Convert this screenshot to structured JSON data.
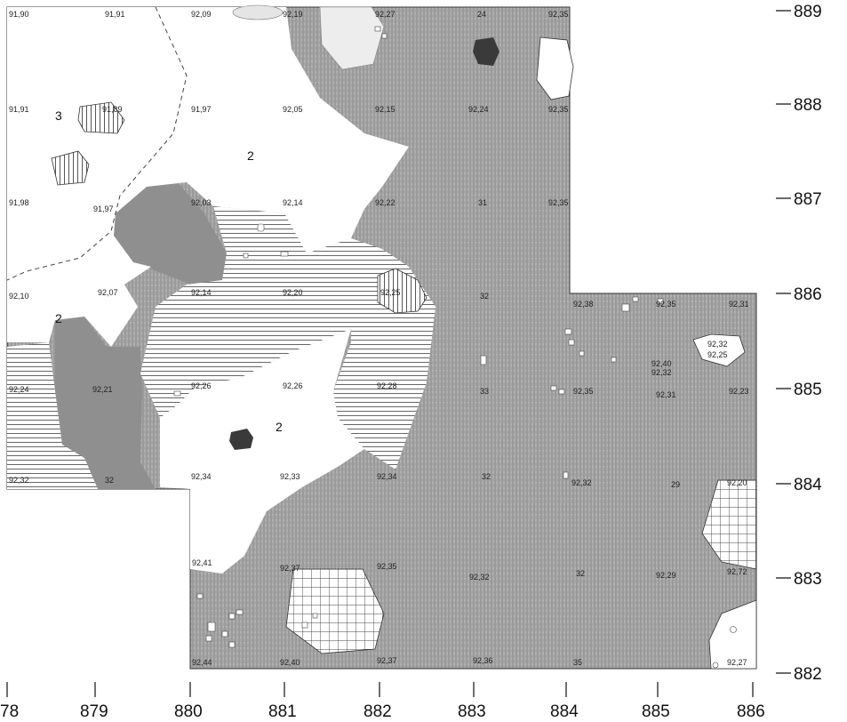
{
  "colors": {
    "stipple_fill": "#a8a8a8",
    "dark_fill": "#8c8c8c",
    "black_fill": "#3a3a3a",
    "light_fill": "#e6e6e6",
    "hatch_stroke": "#444444",
    "dashed_boundary": "#444444"
  },
  "axis": {
    "y_ticks": [
      "889",
      "888",
      "887",
      "886",
      "885",
      "884",
      "883",
      "882"
    ],
    "x_ticks": [
      "78",
      "879",
      "880",
      "881",
      "882",
      "883",
      "884",
      "885",
      "886"
    ]
  },
  "zone_labels": [
    "3",
    "2",
    "2",
    "2"
  ],
  "elevations": [
    "91,90",
    "91,91",
    "92,09",
    "92,19",
    "92,27",
    "24",
    "92,35",
    "91,91",
    "91,89",
    "91,97",
    "92,05",
    "92,15",
    "92,24",
    "92,35",
    "91,98",
    "91,97",
    "92,03",
    "92,14",
    "92,22",
    "31",
    "92,35",
    "92,10",
    "92,07",
    "92,14",
    "92,20",
    "92,25",
    "32",
    "92,38",
    "92,35",
    "92,31",
    "92,32",
    "92,25",
    "92,40",
    "92,32",
    "92,24",
    "92,21",
    "92,26",
    "92,26",
    "92,28",
    "33",
    "92,35",
    "92,31",
    "92,23",
    "92,32",
    "32",
    "92,34",
    "92,33",
    "92,34",
    "32",
    "92,32",
    "29",
    "92,20",
    "92,41",
    "92,37",
    "92,35",
    "92,32",
    "32",
    "92,29",
    "92,72",
    "92,44",
    "92,40",
    "92,37",
    "92,36",
    "35",
    "92,27"
  ]
}
